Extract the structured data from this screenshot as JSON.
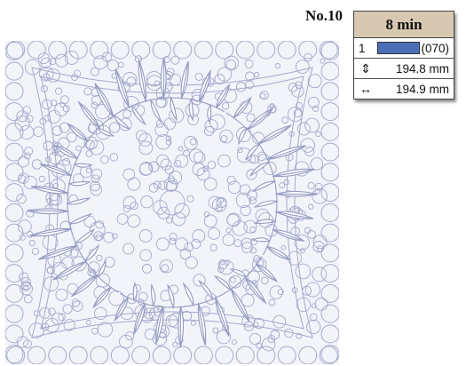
{
  "design": {
    "number": "No.10",
    "time": "8 min",
    "thread": {
      "index": "1",
      "code": "(070)",
      "color": "#4a6fb8"
    },
    "height": {
      "icon": "vertical-arrows-icon",
      "value": "194.8 mm"
    },
    "width": {
      "icon": "horizontal-arrows-icon",
      "value": "194.9 mm"
    },
    "stitch_color": "#9aa0c4"
  }
}
